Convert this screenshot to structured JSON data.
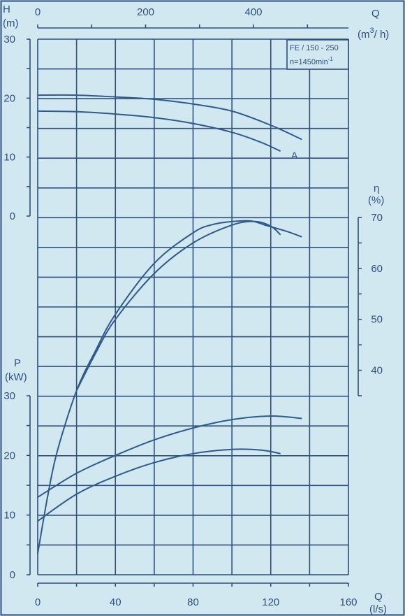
{
  "colors": {
    "background": "#d2e8f1",
    "ink": "#2f4f7e",
    "curve": "#2f5a8e"
  },
  "chart_data": {
    "type": "line",
    "grid": true,
    "info_box": {
      "line1": "FE / 150 - 250",
      "speed": "n=1450min",
      "speed_exp": "-1"
    },
    "axes": {
      "q_ls": {
        "symbol": "Q",
        "unit": "(l/s)",
        "ticks": [
          "0",
          "40",
          "80",
          "120",
          "160"
        ],
        "range": [
          0,
          160
        ]
      },
      "q_m3h": {
        "symbol": "Q",
        "unit_pre": "(m",
        "unit_exp": "3",
        "unit_post": "/ h)",
        "ticks": [
          "0",
          "200",
          "400"
        ],
        "range": [
          0,
          576
        ]
      },
      "h": {
        "symbol": "H",
        "unit": "(m)",
        "ticks": [
          "0",
          "10",
          "20",
          "30"
        ],
        "range": [
          0,
          30
        ]
      },
      "eta": {
        "symbol": "η",
        "unit": "(%)",
        "ticks": [
          "40",
          "50",
          "60",
          "70"
        ],
        "range": [
          35,
          70
        ]
      },
      "p": {
        "symbol": "P",
        "unit": "(kW)",
        "ticks": [
          "0",
          "10",
          "20",
          "30"
        ],
        "range": [
          0,
          30
        ]
      }
    },
    "series": [
      {
        "group": "head",
        "label": "",
        "points": [
          [
            0,
            20.5
          ],
          [
            20,
            20.5
          ],
          [
            40,
            20.2
          ],
          [
            60,
            19.8
          ],
          [
            80,
            19
          ],
          [
            100,
            17.8
          ],
          [
            120,
            15.4
          ],
          [
            136,
            13
          ]
        ]
      },
      {
        "group": "head",
        "label": "A",
        "points": [
          [
            0,
            17.8
          ],
          [
            20,
            17.7
          ],
          [
            40,
            17.3
          ],
          [
            60,
            16.7
          ],
          [
            80,
            15.7
          ],
          [
            100,
            14.2
          ],
          [
            115,
            12.5
          ],
          [
            125,
            11
          ]
        ]
      },
      {
        "group": "efficiency",
        "label": "",
        "points": [
          [
            0,
            4
          ],
          [
            5,
            15
          ],
          [
            10,
            24
          ],
          [
            20,
            36
          ],
          [
            30,
            44
          ],
          [
            40,
            51
          ],
          [
            60,
            61
          ],
          [
            80,
            67
          ],
          [
            90,
            68.6
          ],
          [
            100,
            69.2
          ],
          [
            110,
            69.3
          ],
          [
            118,
            68.4
          ],
          [
            128,
            67.3
          ],
          [
            136,
            66.2
          ]
        ]
      },
      {
        "group": "efficiency",
        "label": "",
        "points": [
          [
            20,
            36
          ],
          [
            30,
            43.5
          ],
          [
            40,
            50
          ],
          [
            60,
            59
          ],
          [
            80,
            65
          ],
          [
            100,
            68.5
          ],
          [
            112,
            69.2
          ],
          [
            120,
            68.3
          ],
          [
            125,
            66.6
          ]
        ]
      },
      {
        "group": "power",
        "label": "",
        "points": [
          [
            0,
            13
          ],
          [
            20,
            17
          ],
          [
            40,
            20
          ],
          [
            60,
            22.6
          ],
          [
            80,
            24.6
          ],
          [
            100,
            26
          ],
          [
            120,
            26.6
          ],
          [
            136,
            26.2
          ]
        ]
      },
      {
        "group": "power",
        "label": "",
        "points": [
          [
            0,
            9
          ],
          [
            20,
            13.5
          ],
          [
            40,
            16.5
          ],
          [
            60,
            18.8
          ],
          [
            80,
            20.3
          ],
          [
            100,
            21
          ],
          [
            115,
            20.9
          ],
          [
            125,
            20.3
          ]
        ]
      }
    ]
  }
}
